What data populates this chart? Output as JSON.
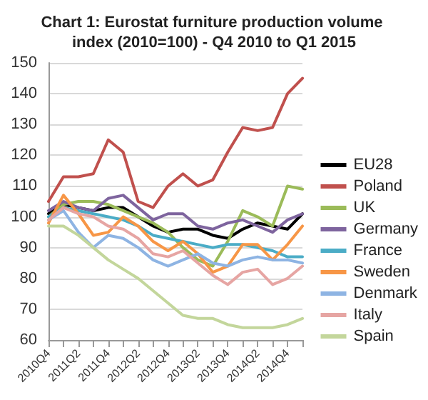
{
  "chart_data": {
    "type": "line",
    "title": "Chart 1: Eurostat furniture production volume index (2010=100) - Q4 2010 to Q1 2015",
    "categories": [
      "2010Q4",
      null,
      "2011Q2",
      null,
      "2011Q4",
      null,
      "2012Q2",
      null,
      "2012Q4",
      null,
      "2013Q2",
      null,
      "2013Q4",
      null,
      "2014Q2",
      null,
      "2014Q4",
      null
    ],
    "series": [
      {
        "name": "EU28",
        "color": "#000000",
        "values": [
          101,
          104,
          103,
          102,
          103,
          103,
          100,
          97,
          95,
          96,
          96,
          94,
          93,
          96,
          98,
          97,
          96,
          101
        ]
      },
      {
        "name": "Poland",
        "color": "#c0504d",
        "values": [
          105,
          113,
          113,
          114,
          125,
          121,
          105,
          103,
          110,
          114,
          110,
          112,
          121,
          129,
          128,
          129,
          140,
          145
        ]
      },
      {
        "name": "UK",
        "color": "#9bbb59",
        "values": [
          100,
          104,
          105,
          105,
          104,
          102,
          100,
          98,
          95,
          90,
          86,
          84,
          92,
          102,
          100,
          97,
          110,
          109
        ]
      },
      {
        "name": "Germany",
        "color": "#7e649e",
        "values": [
          102,
          105,
          103,
          102,
          106,
          107,
          103,
          99,
          101,
          101,
          97,
          96,
          98,
          99,
          97,
          95,
          99,
          101
        ]
      },
      {
        "name": "France",
        "color": "#4bacc6",
        "values": [
          100,
          103,
          102,
          101,
          100,
          99,
          97,
          94,
          93,
          92,
          91,
          90,
          91,
          91,
          90,
          89,
          87,
          87
        ]
      },
      {
        "name": "Sweden",
        "color": "#f79646",
        "values": [
          98,
          107,
          101,
          94,
          95,
          100,
          97,
          92,
          89,
          92,
          88,
          82,
          84,
          91,
          91,
          86,
          91,
          97
        ]
      },
      {
        "name": "Denmark",
        "color": "#8eb4e3",
        "values": [
          99,
          102,
          95,
          90,
          94,
          93,
          90,
          86,
          84,
          86,
          88,
          85,
          84,
          86,
          87,
          86,
          86,
          85
        ]
      },
      {
        "name": "Italy",
        "color": "#e6a5a3",
        "values": [
          99,
          103,
          101,
          100,
          97,
          96,
          93,
          88,
          87,
          89,
          85,
          81,
          78,
          82,
          83,
          78,
          80,
          84
        ]
      },
      {
        "name": "Spain",
        "color": "#c3d69b",
        "values": [
          97,
          97,
          94,
          90,
          86,
          83,
          80,
          76,
          72,
          68,
          67,
          67,
          65,
          64,
          64,
          64,
          65,
          67
        ]
      }
    ],
    "ylim": [
      60,
      150
    ],
    "yticks": [
      60,
      70,
      80,
      90,
      100,
      110,
      120,
      130,
      140,
      150
    ],
    "grid": "y",
    "legend": "right",
    "marker": "none",
    "line_style": "solid"
  }
}
